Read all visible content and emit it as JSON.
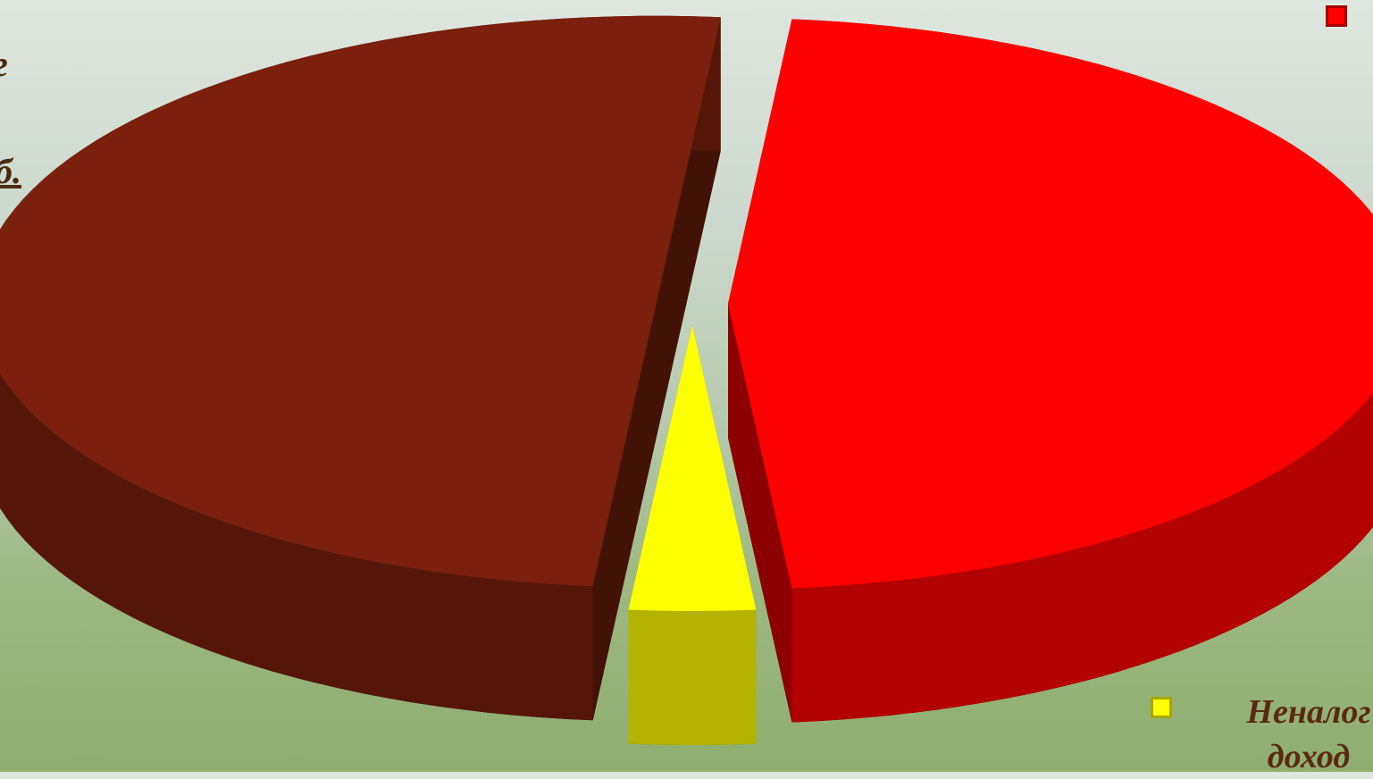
{
  "chart_data": {
    "type": "pie",
    "view": "3d",
    "categories": [
      "Неналог доход",
      null,
      null
    ],
    "values": [
      3,
      50,
      47
    ],
    "colors": [
      "#ffff00",
      "#7a200c",
      "#ff0000"
    ],
    "annotations": [
      "г",
      "б."
    ]
  }
}
